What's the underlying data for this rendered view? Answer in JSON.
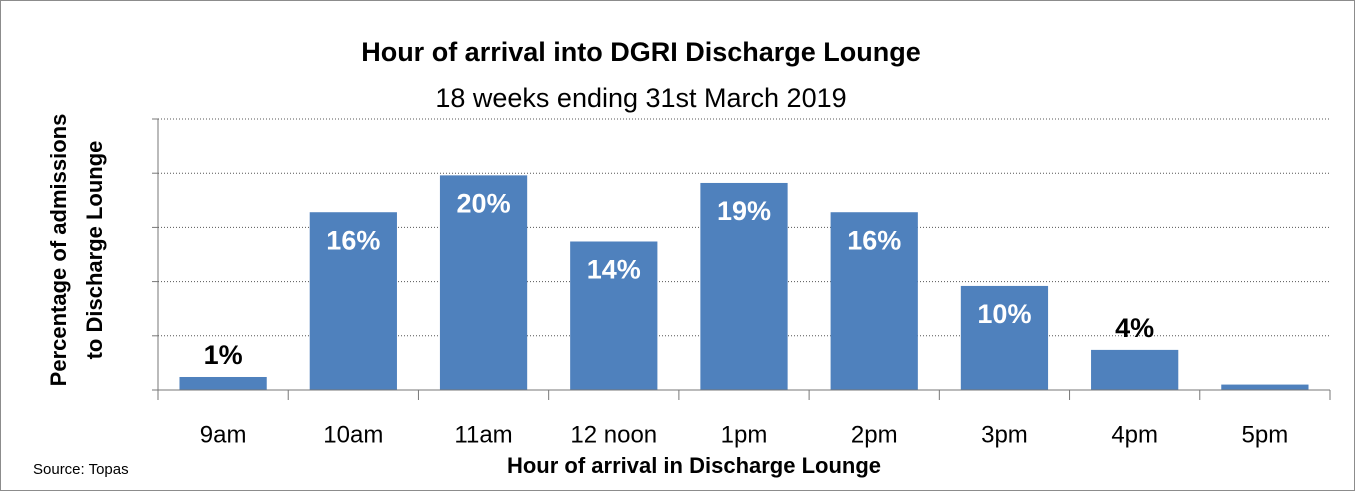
{
  "chart_data": {
    "type": "bar",
    "title": "Hour of arrival into DGRI Discharge Lounge",
    "subtitle": "18 weeks ending 31st March 2019",
    "x_label": "Hour of arrival in Discharge Lounge",
    "y_label": [
      "Percentage of admissions",
      "to Discharge Lounge"
    ],
    "source": "Source: Topas",
    "categories": [
      "9am",
      "10am",
      "11am",
      "12 noon",
      "1pm",
      "2pm",
      "3pm",
      "4pm",
      "5pm"
    ],
    "values": [
      1.2,
      16.4,
      19.8,
      13.7,
      19.1,
      16.4,
      9.6,
      3.7,
      0.5
    ],
    "value_labels": [
      "1%",
      "16%",
      "20%",
      "14%",
      "19%",
      "16%",
      "10%",
      "4%",
      null
    ],
    "color": "#4f81bd",
    "ylim": [
      0,
      25
    ],
    "yticks": [
      0,
      5,
      10,
      15,
      20,
      25
    ],
    "grid": true
  }
}
